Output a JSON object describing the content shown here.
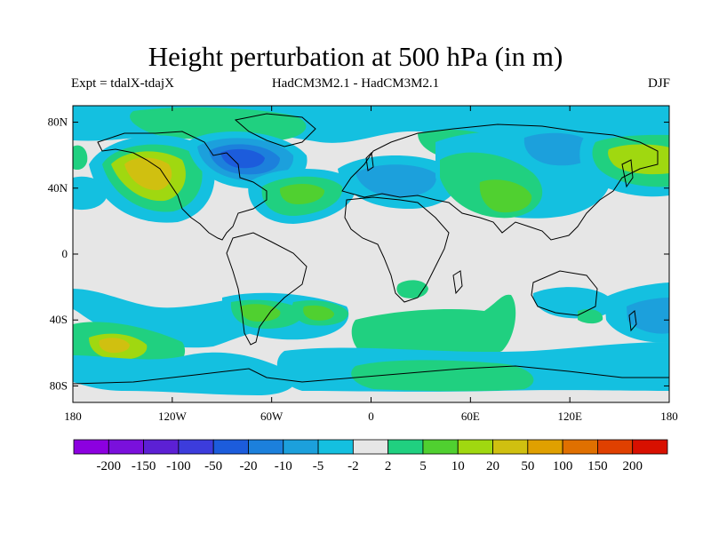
{
  "title": "Height perturbation at 500 hPa (in m)",
  "subtitle_left": "Expt = tdalX-tdajX",
  "subtitle_center": "HadCM3M2.1 - HadCM3M2.1",
  "subtitle_right": "DJF",
  "lon_ticks": [
    "180",
    "120W",
    "60W",
    "0",
    "60E",
    "120E",
    "180"
  ],
  "lat_ticks": [
    "80N",
    "40N",
    "0",
    "40S",
    "80S"
  ],
  "colorbar": {
    "colors": [
      "#8c00e0",
      "#7a10dc",
      "#5c20d4",
      "#3c3cdc",
      "#1c5cdc",
      "#1c80dc",
      "#1ca0dc",
      "#14c0e0",
      "#e6e6e6",
      "#20d080",
      "#50d030",
      "#a0d810",
      "#d0c010",
      "#e0a000",
      "#e07000",
      "#e04000",
      "#d81000"
    ],
    "labels": [
      "-200",
      "-150",
      "-100",
      "-50",
      "-20",
      "-10",
      "-5",
      "-2",
      "2",
      "5",
      "10",
      "20",
      "50",
      "100",
      "150",
      "200"
    ]
  }
}
